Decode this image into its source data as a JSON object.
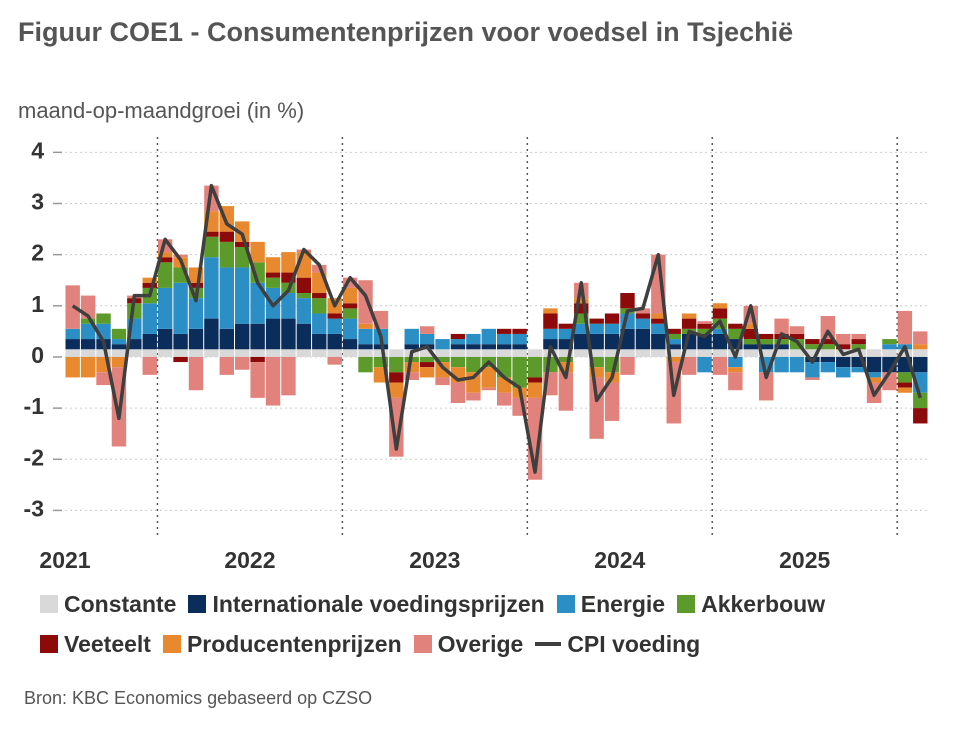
{
  "chart_data": {
    "type": "bar",
    "title": "Figuur COE1 - Consumentenprijzen voor voedsel in Tsjechië",
    "subtitle": "maand-op-maandgroei (in %)",
    "source": "Bron: KBC Economics gebaseerd op CZSO",
    "categories": [
      "2021",
      null,
      null,
      null,
      null,
      null,
      null,
      null,
      null,
      null,
      null,
      null,
      "2022",
      null,
      null,
      null,
      null,
      null,
      null,
      null,
      null,
      null,
      null,
      null,
      "2023",
      null,
      null,
      null,
      null,
      null,
      null,
      null,
      null,
      null,
      null,
      null,
      "2024",
      null,
      null,
      null,
      null,
      null,
      null,
      null,
      null,
      null,
      null,
      null,
      "2025",
      null,
      null,
      null,
      null,
      null,
      null,
      null
    ],
    "ylim": [
      -3.5,
      4.3
    ],
    "yticks": [
      -3,
      -2,
      -1,
      0,
      1,
      2,
      3,
      4
    ],
    "grid": true,
    "stacked": true,
    "series": [
      {
        "name": "Constante",
        "color": "#d9d9d9",
        "values": [
          0.15,
          0.15,
          0.15,
          0.15,
          0.15,
          0.15,
          0.15,
          0.15,
          0.15,
          0.15,
          0.15,
          0.15,
          0.15,
          0.15,
          0.15,
          0.15,
          0.15,
          0.15,
          0.15,
          0.15,
          0.15,
          0.15,
          0.15,
          0.15,
          0.15,
          0.15,
          0.15,
          0.15,
          0.15,
          0.15,
          0.15,
          0.15,
          0.15,
          0.15,
          0.15,
          0.15,
          0.15,
          0.15,
          0.15,
          0.15,
          0.15,
          0.15,
          0.15,
          0.15,
          0.15,
          0.15,
          0.15,
          0.15,
          0.15,
          0.15,
          0.15,
          0.15,
          0.15,
          0.15,
          0.15,
          0.15
        ]
      },
      {
        "name": "Internationale voedingsprijzen",
        "color": "#0b2d5b",
        "values": [
          0.2,
          0.2,
          0.2,
          0.1,
          0.2,
          0.3,
          0.4,
          0.3,
          0.4,
          0.6,
          0.4,
          0.5,
          0.5,
          0.6,
          0.6,
          0.5,
          0.3,
          0.3,
          0.2,
          0.1,
          0.1,
          0,
          0.1,
          0.1,
          0,
          0.1,
          0.1,
          0.1,
          0.1,
          0.1,
          0,
          0.2,
          0.2,
          0.3,
          0.3,
          0.3,
          0.4,
          0.4,
          0.3,
          0.1,
          0.3,
          0.3,
          0.3,
          0.2,
          0.1,
          0.1,
          0.1,
          0,
          -0.1,
          -0.1,
          -0.2,
          -0.2,
          -0.3,
          -0.3,
          -0.3,
          -0.3
        ]
      },
      {
        "name": "Energie",
        "color": "#2b8fc6",
        "values": [
          0.2,
          0.3,
          0.3,
          0.1,
          0.4,
          0.6,
          0.8,
          1.0,
          0.6,
          1.2,
          1.2,
          1.1,
          0.8,
          0.6,
          0.5,
          0.5,
          0.4,
          0.3,
          0.4,
          0.3,
          0.3,
          0,
          0.3,
          0.2,
          0.2,
          0.1,
          0.2,
          0.3,
          0.2,
          0.2,
          0,
          0.2,
          0.2,
          0.2,
          0.2,
          0.2,
          0.3,
          0.2,
          0.2,
          0.1,
          0,
          -0.3,
          0.1,
          -0.2,
          0,
          -0.3,
          -0.3,
          -0.3,
          -0.3,
          -0.2,
          -0.2,
          -0.1,
          -0.1,
          0.1,
          0.1,
          -0.4
        ]
      },
      {
        "name": "Akkerbouw",
        "color": "#5b9a2b",
        "values": [
          0,
          0.1,
          0.2,
          0.2,
          0.3,
          0.3,
          0.5,
          0.3,
          0.2,
          0.4,
          0.5,
          0.4,
          0.4,
          0.2,
          0.2,
          0.1,
          0.3,
          0,
          0.2,
          -0.3,
          -0.2,
          -0.3,
          -0.1,
          -0.1,
          -0.1,
          -0.2,
          -0.3,
          -0.2,
          -0.4,
          -0.6,
          -0.4,
          -0.3,
          -0.1,
          0.2,
          -0.2,
          -0.3,
          0.1,
          0,
          0,
          0.1,
          0.1,
          0.1,
          0.2,
          0.2,
          0.1,
          0.1,
          0.1,
          0.2,
          0.1,
          0.1,
          0,
          0.1,
          0,
          0.1,
          -0.2,
          -0.3
        ]
      },
      {
        "name": "Veeteelt",
        "color": "#8c0a0a",
        "values": [
          0,
          0,
          0,
          0,
          0.1,
          0.1,
          0.1,
          -0.1,
          0.1,
          0.1,
          0.2,
          0.1,
          -0.1,
          0.1,
          0.2,
          0.3,
          0.1,
          0.1,
          0.1,
          0,
          0,
          -0.2,
          0,
          -0.1,
          0,
          0.1,
          0,
          0,
          0.1,
          0.1,
          -0.1,
          0.3,
          0.1,
          0.2,
          0.1,
          0.2,
          0.3,
          0.1,
          0.1,
          0.1,
          0.2,
          0.1,
          0.2,
          0.1,
          0.2,
          0.1,
          0.1,
          0.1,
          0.1,
          0.1,
          0.1,
          0.1,
          0,
          0,
          -0.1,
          -0.3
        ]
      },
      {
        "name": "Producentenprijzen",
        "color": "#e8892f",
        "values": [
          -0.4,
          -0.4,
          -0.3,
          -0.2,
          0,
          0.1,
          0.1,
          0.2,
          0.3,
          0.4,
          0.5,
          0.4,
          0.4,
          0.3,
          0.4,
          0.5,
          0.4,
          0.3,
          0.3,
          0.1,
          -0.3,
          -0.3,
          -0.2,
          -0.2,
          -0.3,
          -0.3,
          -0.4,
          -0.4,
          -0.3,
          -0.2,
          -0.3,
          0.1,
          -0.2,
          0.1,
          -0.2,
          -0.2,
          0,
          0,
          0.1,
          -0.1,
          0.1,
          0,
          0.1,
          -0.1,
          0.1,
          0,
          0,
          0,
          0,
          0,
          0,
          0,
          -0.1,
          0,
          -0.1,
          0.1
        ]
      },
      {
        "name": "Overige",
        "color": "#e2827c",
        "values": [
          0.85,
          0.45,
          -0.25,
          -1.55,
          0.05,
          -0.35,
          0.25,
          0.05,
          -0.65,
          0.5,
          -0.35,
          -0.25,
          -0.7,
          -0.95,
          -0.75,
          0.05,
          0.15,
          -0.15,
          0.2,
          0.85,
          0.35,
          -1.15,
          -0.15,
          0.15,
          -0.15,
          -0.4,
          -0.15,
          -0.05,
          -0.25,
          -0.35,
          -1.6,
          -0.45,
          -0.75,
          0.3,
          -1.2,
          -0.75,
          -0.35,
          0.1,
          1.15,
          -1.2,
          -0.35,
          0.05,
          -0.35,
          -0.35,
          0.35,
          -0.55,
          0.3,
          0.15,
          -0.05,
          0.45,
          0.2,
          0.1,
          -0.4,
          -0.35,
          0.65,
          0.25
        ]
      },
      {
        "name": "CPI voeding",
        "color": "#3f3f3f",
        "type": "line",
        "values": [
          1.0,
          0.8,
          0.3,
          -1.2,
          1.2,
          1.2,
          2.3,
          1.9,
          1.1,
          3.35,
          2.6,
          2.4,
          1.45,
          1.0,
          1.3,
          2.1,
          1.8,
          1.0,
          1.55,
          1.2,
          0.4,
          -1.8,
          0.1,
          0.2,
          -0.2,
          -0.45,
          -0.4,
          -0.1,
          -0.4,
          -0.6,
          -2.25,
          0.2,
          -0.4,
          1.45,
          -0.85,
          -0.4,
          0.9,
          0.95,
          2.0,
          -0.75,
          0.5,
          0.4,
          0.7,
          0.0,
          1.0,
          -0.4,
          0.45,
          0.3,
          -0.1,
          0.5,
          0.05,
          0.15,
          -0.75,
          -0.3,
          0.2,
          -0.8
        ]
      }
    ]
  }
}
